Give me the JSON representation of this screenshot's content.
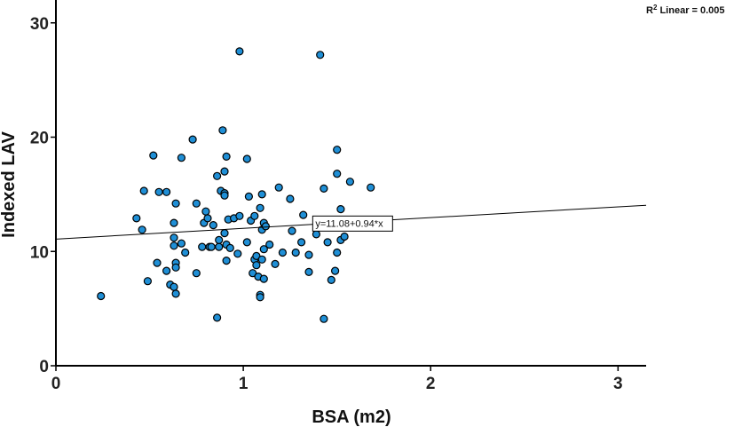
{
  "chart_data": {
    "type": "scatter",
    "xlabel": "BSA  (m2)",
    "ylabel": "Indexed LAV",
    "xlim": [
      0,
      3.15
    ],
    "ylim": [
      0,
      32
    ],
    "x_ticks": [
      0,
      1,
      2,
      3
    ],
    "y_ticks": [
      0,
      10,
      20,
      30
    ],
    "grid": false,
    "marker_color": "#1f8fd6",
    "marker_edge_color": "#000000",
    "r2_label": {
      "prefix": "R",
      "sup": "2",
      "suffix": " Linear = 0.005"
    },
    "fit_line": {
      "intercept": 11.08,
      "slope": 0.94,
      "label": "y=11.08+0.94*x",
      "label_at": [
        1.38,
        12.4
      ]
    },
    "points": [
      [
        0.24,
        6.1
      ],
      [
        0.43,
        12.9
      ],
      [
        0.46,
        11.9
      ],
      [
        0.47,
        15.3
      ],
      [
        0.49,
        7.4
      ],
      [
        0.52,
        18.4
      ],
      [
        0.54,
        9.0
      ],
      [
        0.55,
        15.2
      ],
      [
        0.59,
        15.2
      ],
      [
        0.59,
        8.3
      ],
      [
        0.61,
        7.1
      ],
      [
        0.63,
        6.9
      ],
      [
        0.63,
        10.5
      ],
      [
        0.63,
        11.2
      ],
      [
        0.63,
        12.5
      ],
      [
        0.64,
        9.0
      ],
      [
        0.64,
        8.6
      ],
      [
        0.64,
        14.2
      ],
      [
        0.64,
        6.3
      ],
      [
        0.67,
        10.7
      ],
      [
        0.67,
        18.2
      ],
      [
        0.69,
        9.9
      ],
      [
        0.73,
        19.8
      ],
      [
        0.75,
        14.2
      ],
      [
        0.75,
        8.1
      ],
      [
        0.78,
        10.4
      ],
      [
        0.79,
        12.5
      ],
      [
        0.8,
        13.5
      ],
      [
        0.81,
        12.9
      ],
      [
        0.82,
        10.4
      ],
      [
        0.83,
        10.4
      ],
      [
        0.84,
        12.3
      ],
      [
        0.86,
        16.6
      ],
      [
        0.86,
        4.2
      ],
      [
        0.87,
        10.4
      ],
      [
        0.87,
        11.0
      ],
      [
        0.88,
        15.3
      ],
      [
        0.89,
        20.6
      ],
      [
        0.9,
        15.1
      ],
      [
        0.9,
        14.9
      ],
      [
        0.9,
        11.6
      ],
      [
        0.9,
        17.0
      ],
      [
        0.91,
        18.3
      ],
      [
        0.91,
        9.2
      ],
      [
        0.91,
        10.6
      ],
      [
        0.92,
        12.8
      ],
      [
        0.93,
        10.3
      ],
      [
        0.95,
        12.9
      ],
      [
        0.97,
        9.8
      ],
      [
        0.98,
        27.5
      ],
      [
        0.98,
        13.1
      ],
      [
        1.02,
        18.1
      ],
      [
        1.02,
        10.8
      ],
      [
        1.03,
        14.8
      ],
      [
        1.04,
        12.7
      ],
      [
        1.05,
        8.1
      ],
      [
        1.06,
        13.1
      ],
      [
        1.06,
        9.3
      ],
      [
        1.07,
        8.8
      ],
      [
        1.07,
        9.6
      ],
      [
        1.08,
        7.8
      ],
      [
        1.09,
        6.2
      ],
      [
        1.09,
        6.0
      ],
      [
        1.09,
        13.8
      ],
      [
        1.1,
        15.0
      ],
      [
        1.1,
        9.3
      ],
      [
        1.1,
        11.9
      ],
      [
        1.11,
        12.5
      ],
      [
        1.11,
        7.6
      ],
      [
        1.11,
        10.2
      ],
      [
        1.12,
        12.2
      ],
      [
        1.14,
        10.6
      ],
      [
        1.17,
        8.9
      ],
      [
        1.19,
        15.6
      ],
      [
        1.21,
        9.9
      ],
      [
        1.25,
        14.6
      ],
      [
        1.26,
        11.8
      ],
      [
        1.28,
        9.9
      ],
      [
        1.31,
        10.8
      ],
      [
        1.32,
        13.2
      ],
      [
        1.35,
        8.2
      ],
      [
        1.35,
        9.7
      ],
      [
        1.39,
        11.5
      ],
      [
        1.41,
        27.2
      ],
      [
        1.43,
        15.5
      ],
      [
        1.43,
        4.1
      ],
      [
        1.45,
        10.8
      ],
      [
        1.47,
        7.5
      ],
      [
        1.49,
        8.3
      ],
      [
        1.5,
        18.9
      ],
      [
        1.5,
        16.8
      ],
      [
        1.5,
        9.9
      ],
      [
        1.52,
        13.7
      ],
      [
        1.52,
        11.0
      ],
      [
        1.54,
        11.3
      ],
      [
        1.57,
        16.1
      ],
      [
        1.68,
        15.6
      ]
    ]
  }
}
